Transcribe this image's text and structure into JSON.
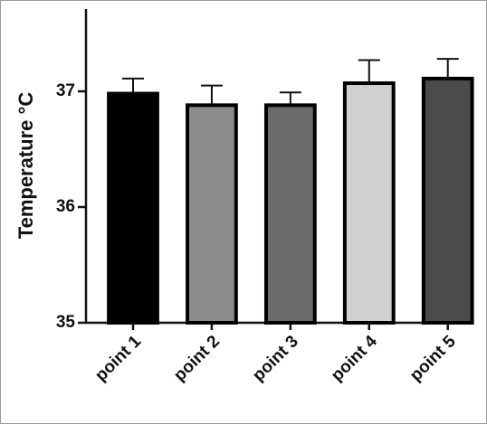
{
  "chart_data": {
    "type": "bar",
    "y_label": "Temperature °C",
    "categories": [
      "point 1",
      "point 2",
      "point 3",
      "point 4",
      "point 5"
    ],
    "values": [
      36.98,
      36.88,
      36.88,
      37.07,
      37.11
    ],
    "errors": [
      0.13,
      0.17,
      0.11,
      0.2,
      0.17
    ],
    "colors": [
      "#000000",
      "#8c8c8c",
      "#6b6b6b",
      "#d0d0d0",
      "#4b4b4b"
    ],
    "ylim": [
      35,
      37.7
    ],
    "yticks": [
      35,
      36,
      37
    ],
    "grid": false
  }
}
